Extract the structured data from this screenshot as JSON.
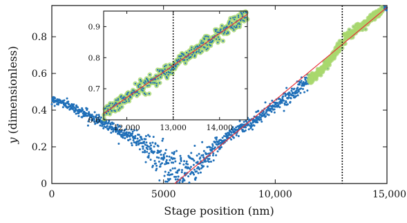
{
  "chart_data": [
    {
      "id": "main",
      "type": "scatter",
      "title": "",
      "xlabel": "Stage position (nm)",
      "ylabel_symbol": "y",
      "ylabel_rest": " (dimensionless)",
      "xlim": [
        0,
        15000
      ],
      "ylim": [
        0,
        0.97
      ],
      "xticks": [
        0,
        5000,
        10000,
        15000
      ],
      "xtick_labels": [
        "0",
        "5000",
        "10,000",
        "15,000"
      ],
      "yticks": [
        0,
        0.2,
        0.4,
        0.6,
        0.8
      ],
      "ytick_labels": [
        "0",
        "0.2",
        "0.4",
        "0.6",
        "0.8"
      ],
      "grid": false,
      "vline_x": 13000,
      "scatter_color": "#1f6fb8",
      "highlight_color": "#a9d86e",
      "fit_color": "#e8333a",
      "series": [
        {
          "role": "measured",
          "trend": [
            [
              0,
              0.46
            ],
            [
              500,
              0.44
            ],
            [
              1000,
              0.41
            ],
            [
              1500,
              0.38
            ],
            [
              2000,
              0.35
            ],
            [
              2500,
              0.32
            ],
            [
              3000,
              0.29
            ],
            [
              3500,
              0.26
            ],
            [
              4000,
              0.22
            ],
            [
              4500,
              0.18
            ],
            [
              5000,
              0.13
            ],
            [
              5500,
              0.08
            ],
            [
              6000,
              0.07
            ],
            [
              6500,
              0.1
            ],
            [
              7000,
              0.16
            ],
            [
              7500,
              0.22
            ],
            [
              8000,
              0.27
            ],
            [
              8500,
              0.31
            ],
            [
              9000,
              0.34
            ],
            [
              9500,
              0.38
            ],
            [
              10000,
              0.43
            ],
            [
              10500,
              0.47
            ],
            [
              11000,
              0.51
            ],
            [
              11500,
              0.56
            ],
            [
              12000,
              0.61
            ],
            [
              12500,
              0.68
            ],
            [
              13000,
              0.77
            ],
            [
              13500,
              0.83
            ],
            [
              14000,
              0.87
            ],
            [
              14500,
              0.92
            ],
            [
              15000,
              0.96
            ]
          ],
          "noise": [
            [
              0,
              0.01
            ],
            [
              4000,
              0.02
            ],
            [
              4500,
              0.05
            ],
            [
              6000,
              0.06
            ],
            [
              6500,
              0.04
            ],
            [
              7500,
              0.02
            ],
            [
              15000,
              0.012
            ]
          ],
          "samples": 1200
        },
        {
          "role": "highlighted",
          "x_range": [
            11500,
            14800
          ]
        }
      ],
      "fit_line": [
        [
          5500,
          0.0
        ],
        [
          15000,
          0.96
        ]
      ]
    },
    {
      "id": "inset",
      "type": "scatter",
      "xlim": [
        11500,
        14600
      ],
      "ylim": [
        0.6,
        0.95
      ],
      "xticks": [
        12000,
        13000,
        14000
      ],
      "xtick_labels": [
        "12,000",
        "13,000",
        "14,000"
      ],
      "yticks": [
        0.6,
        0.7,
        0.8,
        0.9
      ],
      "ytick_labels": [
        "0.6",
        "0.7",
        "0.8",
        "0.9"
      ],
      "vline_x": 13000,
      "fit_line": [
        [
          11500,
          0.62
        ],
        [
          14600,
          0.94
        ]
      ],
      "samples": 320
    }
  ]
}
